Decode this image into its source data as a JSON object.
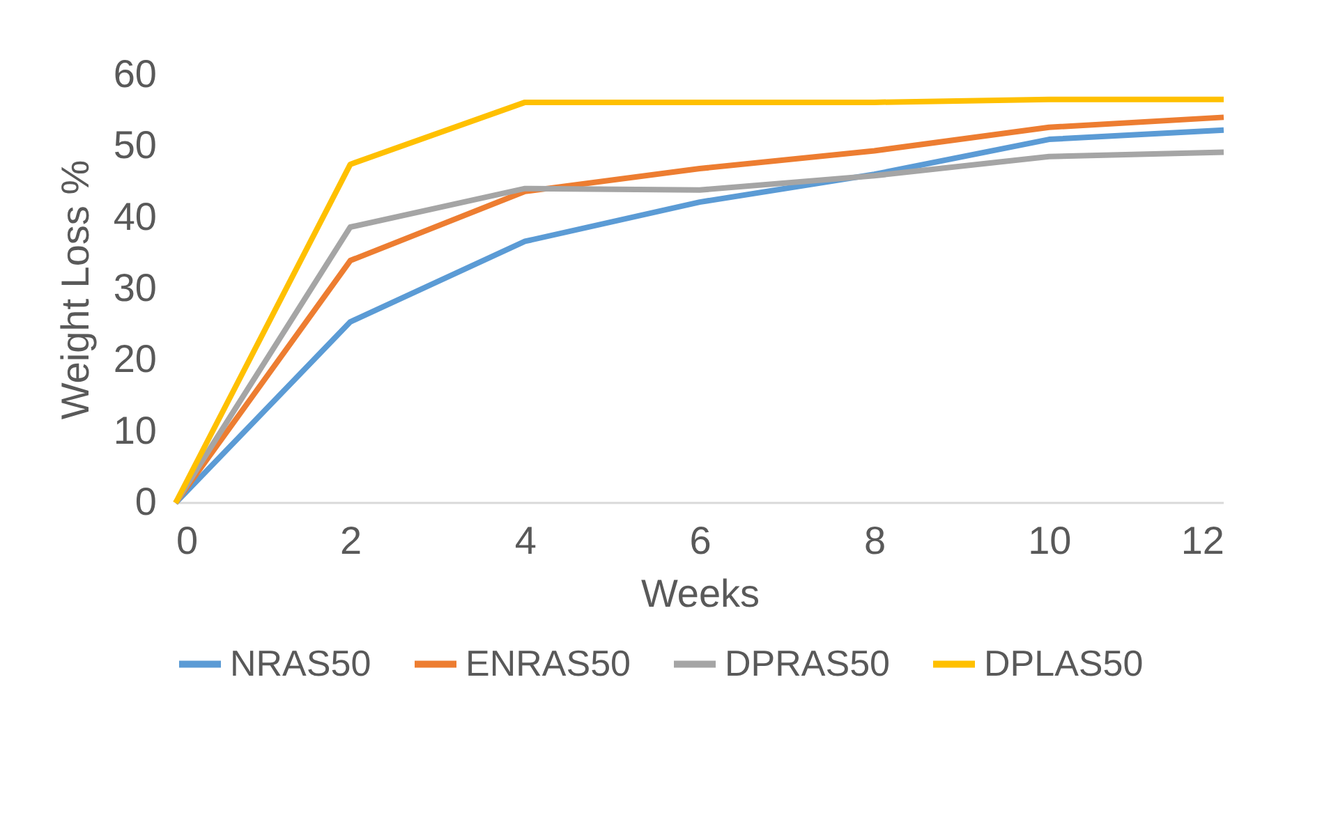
{
  "chart_data": {
    "type": "line",
    "xlabel": "Weeks",
    "ylabel": "Weight Loss %",
    "x": [
      0,
      2,
      4,
      6,
      8,
      10,
      12
    ],
    "xlim": [
      0,
      12
    ],
    "xticks": [
      0,
      2,
      4,
      6,
      8,
      10,
      12
    ],
    "ylim": [
      0,
      60
    ],
    "yticks": [
      0,
      10,
      20,
      30,
      40,
      50,
      60
    ],
    "grid": false,
    "legend": "bottom",
    "marker": "none",
    "line_style": "solid",
    "series": [
      {
        "name": "NRAS50",
        "color": "#5b9bd5",
        "values": [
          0,
          25.4,
          36.7,
          42.2,
          46.1,
          51,
          52.3
        ]
      },
      {
        "name": "ENRAS50",
        "color": "#ed7d31",
        "values": [
          0,
          34,
          43.7,
          46.9,
          49.4,
          52.7,
          54.1
        ]
      },
      {
        "name": "DPRAS50",
        "color": "#a5a5a5",
        "values": [
          0,
          38.7,
          44.1,
          43.9,
          45.9,
          48.6,
          49.2
        ]
      },
      {
        "name": "DPLAS50",
        "color": "#ffc000",
        "values": [
          0,
          47.5,
          56.2,
          56.2,
          56.2,
          56.6,
          56.6
        ]
      }
    ]
  }
}
